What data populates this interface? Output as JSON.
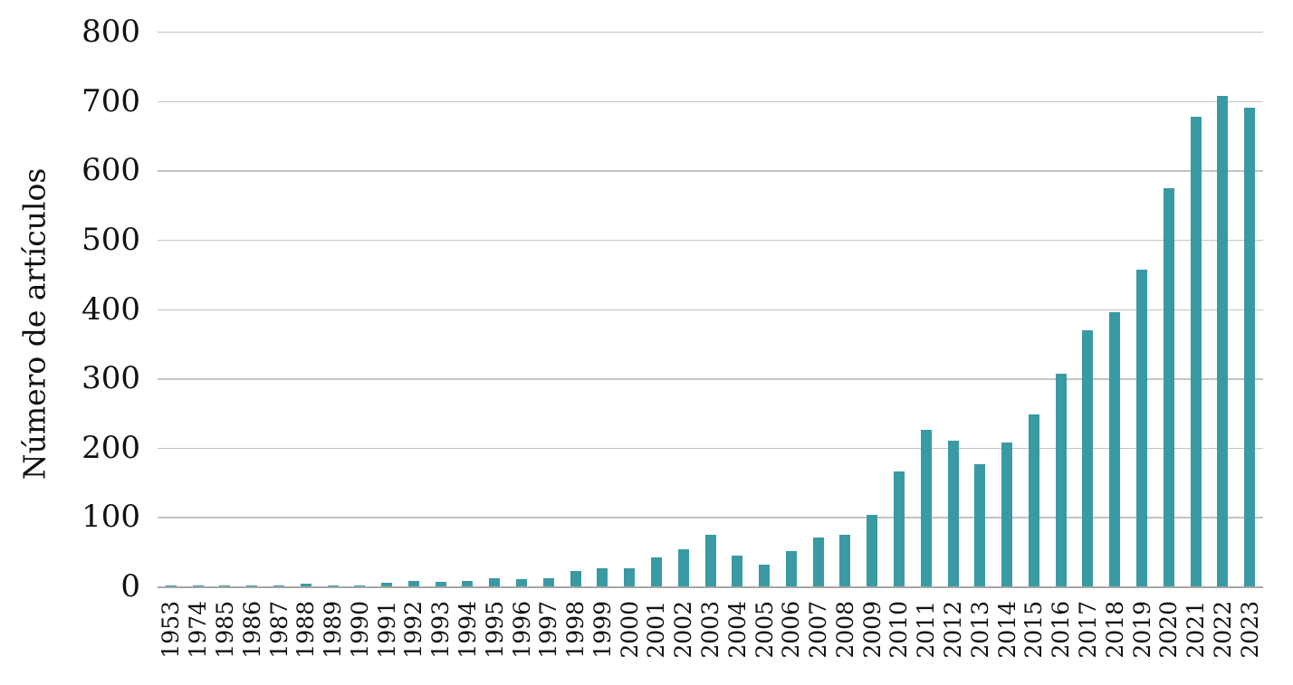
{
  "chart_data": {
    "type": "bar",
    "title": "",
    "xlabel": "",
    "ylabel": "Número de artículos",
    "categories": [
      "1953",
      "1974",
      "1985",
      "1986",
      "1987",
      "1988",
      "1989",
      "1990",
      "1991",
      "1992",
      "1993",
      "1994",
      "1995",
      "1996",
      "1997",
      "1998",
      "1999",
      "2000",
      "2001",
      "2002",
      "2003",
      "2004",
      "2005",
      "2006",
      "2007",
      "2008",
      "2009",
      "2010",
      "2011",
      "2012",
      "2013",
      "2014",
      "2015",
      "2016",
      "2017",
      "2018",
      "2019",
      "2020",
      "2021",
      "2022",
      "2023"
    ],
    "values": [
      1,
      1,
      1,
      1,
      1,
      4,
      1,
      1,
      5,
      8,
      7,
      8,
      12,
      11,
      12,
      22,
      26,
      26,
      42,
      54,
      75,
      45,
      31,
      51,
      71,
      75,
      103,
      166,
      226,
      210,
      176,
      207,
      248,
      307,
      369,
      396,
      457,
      574,
      677,
      707,
      691
    ],
    "ylim": [
      0,
      800
    ],
    "ytick_step": 100,
    "ytick_labels": [
      "800",
      "700",
      "600",
      "500",
      "400",
      "300",
      "200",
      "100",
      "0"
    ],
    "grid": "horizontal-on",
    "legend": "none",
    "bar_color": "#3A9AA3",
    "gridline_color": "#C3C3C3",
    "axis_line_color": "#A6A6A6",
    "text_color": "#111111"
  }
}
